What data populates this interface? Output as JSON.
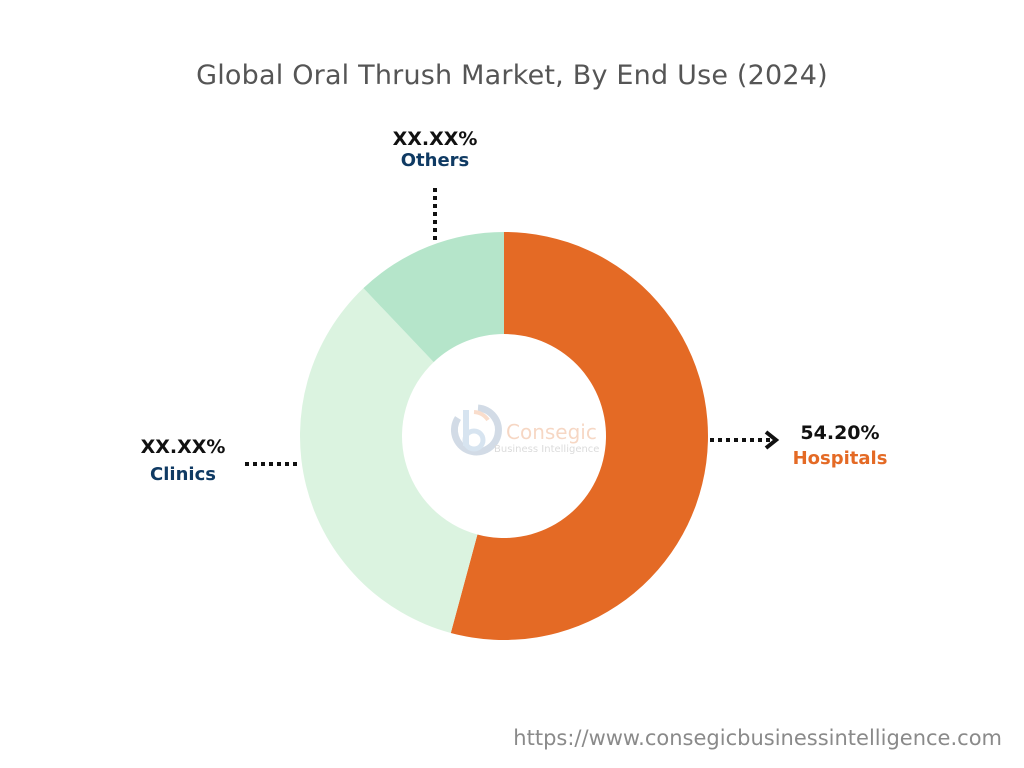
{
  "chart_data": {
    "type": "pie",
    "variant": "donut",
    "title": "Global Oral Thrush Market, By End Use (2024)",
    "slices": [
      {
        "name": "Hospitals",
        "value": 54.2,
        "label": "54.20%",
        "color": "#E46A25",
        "label_color": "#E46A25"
      },
      {
        "name": "Clinics",
        "value": 33.7,
        "label": "XX.XX%",
        "color": "#DBF3E0",
        "label_color": "#0F3A63"
      },
      {
        "name": "Others",
        "value": 12.1,
        "label": "XX.XX%",
        "color": "#B5E5CA",
        "label_color": "#0F3A63"
      }
    ]
  },
  "watermark": {
    "line1": "Consegic",
    "line2": "Business Intelligence"
  },
  "footer": {
    "url": "https://www.consegicbusinessintelligence.com"
  }
}
